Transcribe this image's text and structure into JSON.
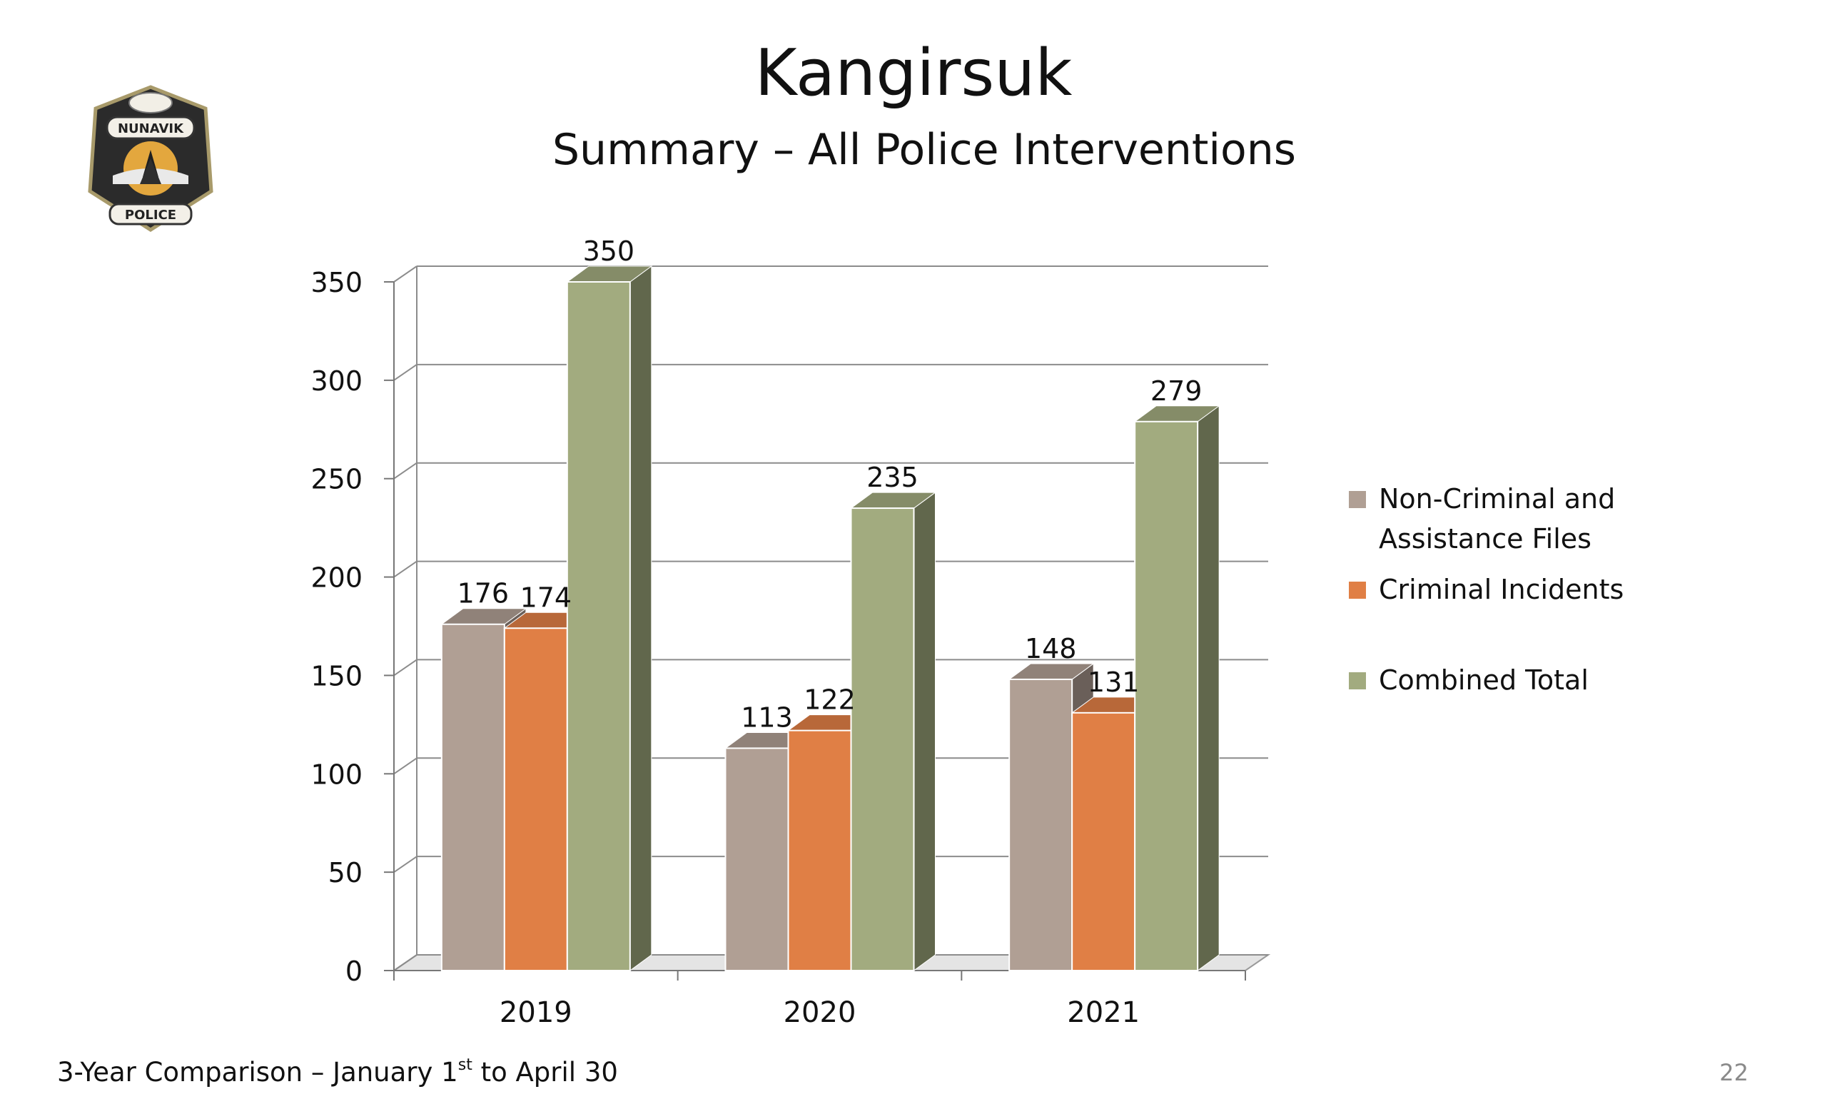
{
  "slide": {
    "title": "Kangirsuk",
    "subtitle": "Summary – All Police Interventions",
    "footer_prefix": "3-Year Comparison – January 1",
    "footer_superscript": "st",
    "footer_suffix": " to April 30",
    "page_number": "22"
  },
  "logo": {
    "top_text": "NUNAVIK",
    "bottom_text": "POLICE",
    "icon": "police-badge-icon"
  },
  "chart_data": {
    "type": "bar",
    "title": "",
    "xlabel": "",
    "ylabel": "",
    "categories": [
      "2019",
      "2020",
      "2021"
    ],
    "series": [
      {
        "name": "Non-Criminal and Assistance Files",
        "values": [
          176,
          113,
          148
        ],
        "color": "#b09f94"
      },
      {
        "name": "Criminal Incidents",
        "values": [
          174,
          122,
          131
        ],
        "color": "#e07f45"
      },
      {
        "name": "Combined Total",
        "values": [
          350,
          235,
          279
        ],
        "color": "#a2ab7f"
      }
    ],
    "ylim": [
      0,
      350
    ],
    "yticks": [
      0,
      50,
      100,
      150,
      200,
      250,
      300,
      350
    ],
    "grid": true,
    "legend_position": "right",
    "style": "3d"
  }
}
